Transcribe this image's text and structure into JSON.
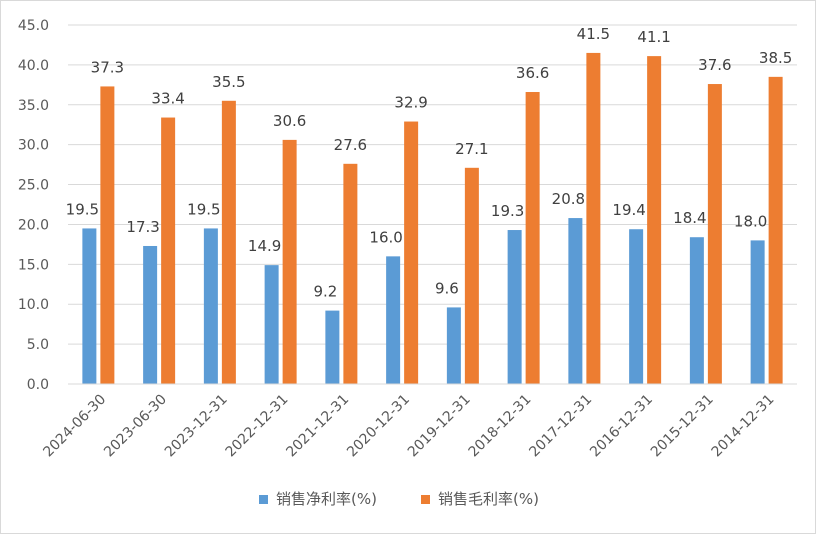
{
  "chart_data": {
    "type": "bar",
    "categories": [
      "2024-06-30",
      "2023-06-30",
      "2023-12-31",
      "2022-12-31",
      "2021-12-31",
      "2020-12-31",
      "2019-12-31",
      "2018-12-31",
      "2017-12-31",
      "2016-12-31",
      "2015-12-31",
      "2014-12-31"
    ],
    "series": [
      {
        "name": "销售净利率(%)",
        "color": "#5B9BD5",
        "values": [
          19.5,
          17.3,
          19.5,
          14.9,
          9.2,
          16.0,
          9.6,
          19.3,
          20.8,
          19.4,
          18.4,
          18.0
        ]
      },
      {
        "name": "销售毛利率(%)",
        "color": "#ED7D31",
        "values": [
          37.3,
          33.4,
          35.5,
          30.6,
          27.6,
          32.9,
          27.1,
          36.6,
          41.5,
          41.1,
          37.6,
          38.5
        ]
      }
    ],
    "title": "",
    "xlabel": "",
    "ylabel": "",
    "ylim": [
      0,
      45
    ],
    "ytick_step": 5,
    "ytick_labels": [
      "0.0",
      "5.0",
      "10.0",
      "15.0",
      "20.0",
      "25.0",
      "30.0",
      "35.0",
      "40.0",
      "45.0"
    ],
    "grid": true,
    "legend_position": "bottom",
    "data_labels": true
  }
}
